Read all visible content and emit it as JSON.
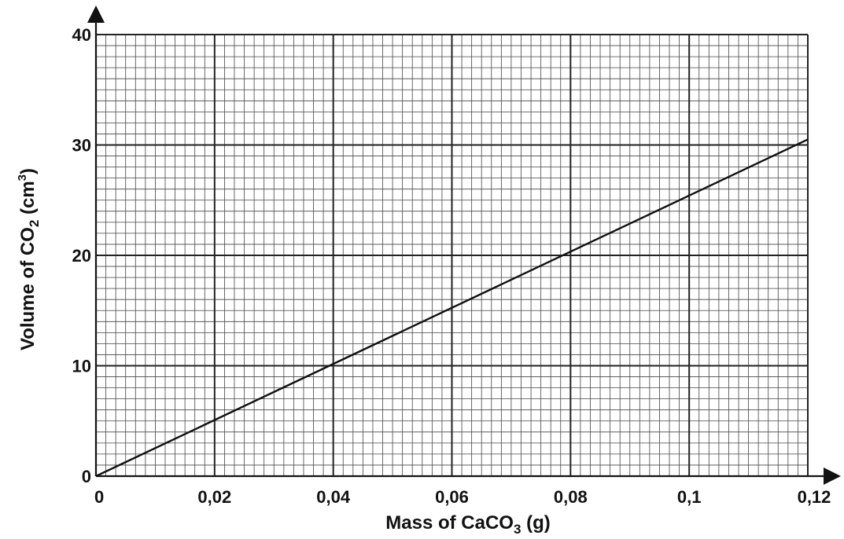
{
  "chart_data": {
    "type": "line",
    "title": "",
    "xlabel": {
      "main": "Mass of CaCO",
      "sub": "3",
      "tail": "  (g)"
    },
    "ylabel": {
      "main": "Volume of CO",
      "sub": "2",
      "mid": " (cm",
      "sup": "3",
      "tail": ")"
    },
    "xlim": [
      0,
      0.12
    ],
    "ylim": [
      0,
      40
    ],
    "x_ticks": [
      0,
      0.02,
      0.04,
      0.06,
      0.08,
      0.1,
      0.12
    ],
    "x_tick_labels": [
      "0",
      "0,02",
      "0,04",
      "0,06",
      "0,08",
      "0,1",
      "0,12"
    ],
    "y_ticks": [
      0,
      10,
      20,
      30,
      40
    ],
    "y_tick_labels": [
      "0",
      "10",
      "20",
      "30",
      "40"
    ],
    "grid": true,
    "series": [
      {
        "x": [
          0,
          0.12
        ],
        "y": [
          0,
          30.5
        ]
      }
    ]
  }
}
